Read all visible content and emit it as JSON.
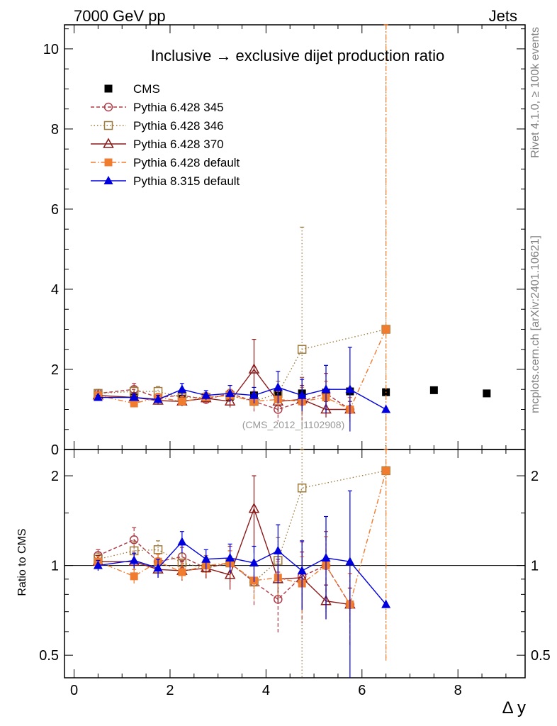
{
  "header": {
    "left": "7000 GeV pp",
    "right": "Jets"
  },
  "side_labels": {
    "rivet": "Rivet 4.1.0, ≥ 100k events",
    "mcplots": "mcplots.cern.ch [arXiv:2401.10621]"
  },
  "analysis_id": "(CMS_2012_I1102908)",
  "chart_data": {
    "type": "scatter",
    "title": "Inclusive → exclusive dijet production ratio",
    "xlabel": "Δ y",
    "ylabel": "",
    "ratio_ylabel": "Ratio to CMS",
    "xlim": [
      -0.2,
      9.4
    ],
    "ylim": [
      0,
      10.6
    ],
    "ratio_ylim": [
      0.42,
      2.45
    ],
    "xticks": [
      "0",
      "2",
      "4",
      "6",
      "8"
    ],
    "yticks": [
      "0",
      "2",
      "4",
      "6",
      "8",
      "10"
    ],
    "ratio_yticks": [
      "0.5",
      "1",
      "2"
    ],
    "legend_position": "top-left",
    "series": [
      {
        "name": "CMS",
        "color": "#000000",
        "marker": "square-filled",
        "line": "none",
        "x": [
          0.5,
          1.25,
          1.75,
          2.25,
          2.75,
          3.25,
          3.75,
          4.25,
          4.75,
          5.25,
          5.75,
          6.5,
          7.5,
          8.6
        ],
        "y": [
          1.35,
          1.3,
          1.28,
          1.27,
          1.3,
          1.32,
          1.35,
          1.37,
          1.4,
          1.42,
          1.45,
          1.43,
          1.48,
          1.4
        ]
      },
      {
        "name": "Pythia 6.428 345",
        "color": "#b03a48",
        "marker": "circle-open",
        "line": "dashed",
        "x": [
          0.5,
          1.25,
          1.75,
          2.25,
          2.75,
          3.25,
          3.75,
          4.25,
          4.75,
          5.25,
          5.75
        ],
        "y": [
          1.4,
          1.5,
          1.3,
          1.35,
          1.25,
          1.4,
          1.2,
          1.0,
          1.2,
          1.4,
          1.0
        ],
        "err": [
          0.1,
          0.15,
          0.1,
          0.15,
          0.12,
          0.2,
          0.25,
          0.3,
          0.6,
          0.5,
          0.3
        ],
        "ratio": [
          1.08,
          1.22,
          1.03,
          1.07,
          0.98,
          1.02,
          0.88,
          0.77,
          0.92,
          1.0,
          0.74
        ],
        "ratio_err": [
          0.05,
          0.12,
          0.06,
          0.08,
          0.08,
          0.14,
          0.15,
          0.18,
          0.28,
          0.3,
          0.2
        ]
      },
      {
        "name": "Pythia 6.428 346",
        "color": "#a07a3c",
        "marker": "square-open",
        "line": "dotted",
        "x": [
          0.5,
          1.25,
          1.75,
          2.25,
          2.75,
          3.25,
          3.75,
          4.25,
          4.75,
          6.5
        ],
        "y": [
          1.4,
          1.45,
          1.45,
          1.3,
          1.3,
          1.35,
          1.2,
          1.4,
          2.5,
          3.0
        ],
        "err": [
          0.1,
          0.12,
          0.12,
          0.12,
          0.12,
          0.15,
          0.15,
          0.3,
          3.05,
          7.8
        ],
        "ratio": [
          1.05,
          1.12,
          1.13,
          1.02,
          0.98,
          1.02,
          0.88,
          1.04,
          1.82,
          2.08
        ],
        "ratio_err": [
          0.05,
          0.08,
          0.08,
          0.08,
          0.08,
          0.1,
          0.12,
          0.2,
          1.5,
          1.6
        ]
      },
      {
        "name": "Pythia 6.428 370",
        "color": "#8b1a1a",
        "marker": "triangle-open",
        "line": "solid",
        "x": [
          0.5,
          1.25,
          1.75,
          2.25,
          2.75,
          3.25,
          3.75,
          4.25,
          4.75,
          5.25,
          5.75
        ],
        "y": [
          1.35,
          1.3,
          1.22,
          1.2,
          1.28,
          1.2,
          2.0,
          1.2,
          1.25,
          1.0,
          1.0
        ],
        "err": [
          0.08,
          0.12,
          0.1,
          0.12,
          0.12,
          0.15,
          0.75,
          0.25,
          0.35,
          0.2,
          0.2
        ],
        "ratio": [
          1.03,
          1.03,
          0.97,
          0.96,
          0.98,
          0.93,
          1.55,
          0.9,
          0.91,
          0.76,
          0.74
        ],
        "ratio_err": [
          0.05,
          0.07,
          0.06,
          0.07,
          0.07,
          0.1,
          0.45,
          0.15,
          0.2,
          0.1,
          0.1
        ]
      },
      {
        "name": "Pythia 6.428 default",
        "color": "#f07c30",
        "marker": "square-filled",
        "line": "dashdot",
        "x": [
          0.5,
          1.25,
          1.75,
          2.25,
          2.75,
          3.25,
          3.75,
          4.25,
          4.75,
          5.25,
          5.75,
          6.5
        ],
        "y": [
          1.35,
          1.15,
          1.3,
          1.2,
          1.3,
          1.35,
          1.2,
          1.25,
          1.2,
          1.3,
          1.0,
          3.0
        ],
        "err": [
          0.05,
          0.1,
          0.1,
          0.12,
          0.12,
          0.15,
          0.2,
          0.2,
          0.35,
          0.4,
          0.3,
          7.8
        ],
        "ratio": [
          1.03,
          0.92,
          1.03,
          0.95,
          1.0,
          1.02,
          0.89,
          0.91,
          0.87,
          1.0,
          0.74,
          2.08
        ],
        "ratio_err": [
          0.04,
          0.05,
          0.06,
          0.06,
          0.08,
          0.1,
          0.12,
          0.12,
          0.2,
          0.25,
          0.2,
          1.6
        ]
      },
      {
        "name": "Pythia 8.315 default",
        "color": "#0000dd",
        "marker": "triangle-filled",
        "line": "solid",
        "x": [
          0.5,
          1.25,
          1.75,
          2.25,
          2.75,
          3.25,
          3.75,
          4.25,
          4.75,
          5.25,
          5.75,
          6.5
        ],
        "y": [
          1.3,
          1.3,
          1.25,
          1.5,
          1.35,
          1.4,
          1.35,
          1.55,
          1.35,
          1.5,
          1.5,
          1.0
        ],
        "err": [
          0.05,
          0.08,
          0.1,
          0.15,
          0.12,
          0.2,
          0.2,
          0.4,
          0.4,
          0.6,
          1.05,
          0.0
        ],
        "ratio": [
          1.0,
          1.04,
          0.98,
          1.2,
          1.05,
          1.06,
          1.02,
          1.12,
          0.96,
          1.06,
          1.03,
          0.74
        ],
        "ratio_err": [
          0.04,
          0.06,
          0.07,
          0.1,
          0.08,
          0.12,
          0.14,
          0.25,
          0.25,
          0.4,
          0.75,
          0.0
        ]
      }
    ]
  }
}
